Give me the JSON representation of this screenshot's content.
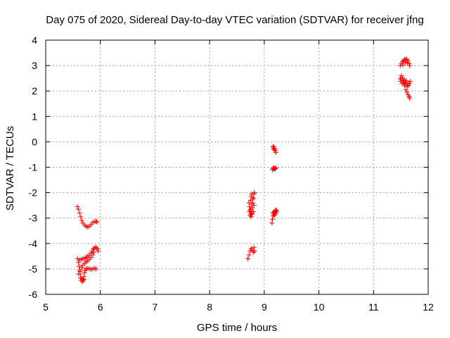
{
  "chart_data": {
    "type": "scatter",
    "title": "Day 075 of 2020, Sidereal Day-to-day VTEC variation (SDTVAR) for receiver jfng",
    "xlabel": "GPS time / hours",
    "ylabel": "SDTVAR / TECUs",
    "xlim": [
      5,
      12
    ],
    "ylim": [
      -6,
      4
    ],
    "xticks": [
      "5",
      "6",
      "7",
      "8",
      "9",
      "10",
      "11",
      "12"
    ],
    "yticks": [
      "-6",
      "-5",
      "-4",
      "-3",
      "-2",
      "-1",
      "0",
      "1",
      "2",
      "3",
      "4"
    ],
    "grid": true,
    "marker": "+",
    "color": "#ff0000",
    "series": [
      {
        "points": [
          [
            5.58,
            -2.55
          ],
          [
            5.6,
            -2.65
          ],
          [
            5.62,
            -2.8
          ],
          [
            5.64,
            -2.95
          ],
          [
            5.66,
            -3.1
          ],
          [
            5.68,
            -3.2
          ],
          [
            5.71,
            -3.28
          ],
          [
            5.74,
            -3.33
          ],
          [
            5.77,
            -3.35
          ],
          [
            5.8,
            -3.32
          ],
          [
            5.83,
            -3.25
          ],
          [
            5.86,
            -3.18
          ],
          [
            5.89,
            -3.14
          ],
          [
            5.92,
            -3.13
          ],
          [
            5.94,
            -3.15
          ],
          [
            5.58,
            -4.6
          ],
          [
            5.6,
            -4.75
          ],
          [
            5.61,
            -4.9
          ],
          [
            5.62,
            -5.05
          ],
          [
            5.63,
            -5.2
          ],
          [
            5.64,
            -5.35
          ],
          [
            5.65,
            -5.45
          ],
          [
            5.67,
            -5.5
          ],
          [
            5.69,
            -5.45
          ],
          [
            5.7,
            -5.3
          ],
          [
            5.71,
            -5.15
          ],
          [
            5.72,
            -5.05
          ],
          [
            5.74,
            -5.0
          ],
          [
            5.77,
            -4.98
          ],
          [
            5.8,
            -5.0
          ],
          [
            5.83,
            -5.02
          ],
          [
            5.86,
            -5.0
          ],
          [
            5.89,
            -4.98
          ],
          [
            5.92,
            -5.0
          ],
          [
            5.62,
            -4.65
          ],
          [
            5.65,
            -4.62
          ],
          [
            5.68,
            -4.6
          ],
          [
            5.71,
            -4.58
          ],
          [
            5.74,
            -4.55
          ],
          [
            5.77,
            -4.5
          ],
          [
            5.8,
            -4.45
          ],
          [
            5.83,
            -4.38
          ],
          [
            5.85,
            -4.3
          ],
          [
            5.87,
            -4.22
          ],
          [
            5.89,
            -4.18
          ],
          [
            5.91,
            -4.15
          ],
          [
            5.93,
            -4.17
          ],
          [
            5.95,
            -4.22
          ],
          [
            5.96,
            -4.3
          ],
          [
            5.6,
            -5.2
          ],
          [
            5.63,
            -5.1
          ],
          [
            5.66,
            -4.95
          ],
          [
            5.68,
            -4.85
          ],
          [
            5.71,
            -4.78
          ],
          [
            5.74,
            -4.72
          ],
          [
            5.77,
            -4.68
          ],
          [
            5.8,
            -4.62
          ],
          [
            5.83,
            -4.55
          ],
          [
            5.86,
            -4.45
          ],
          [
            5.88,
            -4.35
          ],
          [
            5.66,
            -5.38
          ],
          [
            5.68,
            -5.42
          ],
          [
            5.7,
            -5.4
          ]
        ]
      },
      {
        "points": [
          [
            8.7,
            -4.6
          ],
          [
            8.72,
            -4.45
          ],
          [
            8.74,
            -4.3
          ],
          [
            8.76,
            -4.2
          ],
          [
            8.78,
            -4.25
          ],
          [
            8.8,
            -4.35
          ],
          [
            8.82,
            -4.3
          ],
          [
            8.81,
            -4.15
          ],
          [
            8.72,
            -2.4
          ],
          [
            8.73,
            -2.55
          ],
          [
            8.74,
            -2.7
          ],
          [
            8.75,
            -2.85
          ],
          [
            8.76,
            -2.95
          ],
          [
            8.77,
            -2.8
          ],
          [
            8.78,
            -2.6
          ],
          [
            8.79,
            -2.4
          ],
          [
            8.8,
            -2.2
          ],
          [
            8.81,
            -2.05
          ],
          [
            8.82,
            -2.0
          ],
          [
            8.75,
            -2.3
          ],
          [
            8.76,
            -2.15
          ],
          [
            8.77,
            -2.05
          ],
          [
            8.73,
            -2.75
          ],
          [
            8.74,
            -2.9
          ],
          [
            8.78,
            -2.85
          ],
          [
            8.8,
            -2.75
          ],
          [
            8.81,
            -2.5
          ],
          [
            8.79,
            -2.25
          ],
          [
            8.75,
            -2.65
          ],
          [
            8.77,
            -2.45
          ]
        ]
      },
      {
        "points": [
          [
            9.14,
            -3.2
          ],
          [
            9.15,
            -3.05
          ],
          [
            9.16,
            -2.92
          ],
          [
            9.17,
            -2.85
          ],
          [
            9.18,
            -2.8
          ],
          [
            9.19,
            -2.75
          ],
          [
            9.2,
            -2.72
          ],
          [
            9.21,
            -2.7
          ],
          [
            9.22,
            -2.68
          ],
          [
            9.23,
            -2.75
          ],
          [
            9.16,
            -2.78
          ],
          [
            9.19,
            -2.88
          ],
          [
            9.21,
            -2.82
          ],
          [
            9.15,
            -1.1
          ],
          [
            9.16,
            -1.05
          ],
          [
            9.17,
            -1.03
          ],
          [
            9.18,
            -1.05
          ],
          [
            9.19,
            -1.08
          ],
          [
            9.2,
            -1.05
          ],
          [
            9.21,
            -1.02
          ],
          [
            9.16,
            -0.2
          ],
          [
            9.17,
            -0.18
          ],
          [
            9.18,
            -0.25
          ],
          [
            9.19,
            -0.3
          ],
          [
            9.2,
            -0.35
          ],
          [
            9.21,
            -0.42
          ],
          [
            9.17,
            -0.28
          ]
        ]
      },
      {
        "points": [
          [
            11.49,
            3.0
          ],
          [
            11.51,
            3.08
          ],
          [
            11.53,
            3.15
          ],
          [
            11.55,
            3.2
          ],
          [
            11.57,
            3.24
          ],
          [
            11.59,
            3.26
          ],
          [
            11.61,
            3.24
          ],
          [
            11.63,
            3.18
          ],
          [
            11.65,
            3.08
          ],
          [
            11.66,
            3.0
          ],
          [
            11.54,
            3.02
          ],
          [
            11.58,
            3.12
          ],
          [
            11.62,
            3.1
          ],
          [
            11.49,
            2.5
          ],
          [
            11.5,
            2.38
          ],
          [
            11.52,
            2.3
          ],
          [
            11.54,
            2.4
          ],
          [
            11.56,
            2.45
          ],
          [
            11.58,
            2.35
          ],
          [
            11.6,
            2.25
          ],
          [
            11.62,
            2.18
          ],
          [
            11.64,
            2.22
          ],
          [
            11.66,
            2.3
          ],
          [
            11.67,
            2.38
          ],
          [
            11.51,
            2.6
          ],
          [
            11.53,
            2.5
          ],
          [
            11.55,
            2.32
          ],
          [
            11.57,
            2.2
          ],
          [
            11.59,
            2.05
          ],
          [
            11.61,
            1.95
          ],
          [
            11.63,
            1.85
          ],
          [
            11.65,
            1.78
          ],
          [
            11.66,
            1.72
          ],
          [
            11.5,
            2.45
          ],
          [
            11.56,
            2.28
          ],
          [
            11.6,
            2.4
          ],
          [
            11.63,
            2.3
          ]
        ]
      }
    ]
  }
}
